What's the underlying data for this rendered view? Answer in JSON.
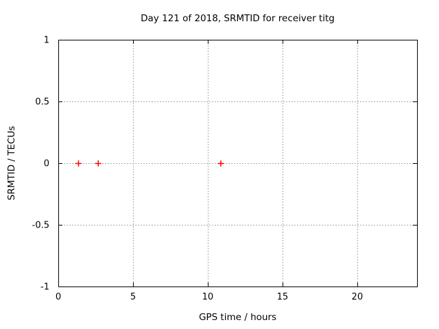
{
  "chart_data": {
    "type": "scatter",
    "title": "Day 121 of 2018, SRMTID for receiver titg",
    "xlabel": "GPS time / hours",
    "ylabel": "SRMTID / TECUs",
    "xlim": [
      0,
      24
    ],
    "ylim": [
      -1,
      1
    ],
    "xticks": [
      0,
      5,
      10,
      15,
      20
    ],
    "xtick_labels": [
      "0",
      "5",
      "10",
      "15",
      "20"
    ],
    "yticks": [
      -1,
      -0.5,
      0,
      0.5,
      1
    ],
    "ytick_labels": [
      "-1",
      "-0.5",
      "0",
      "0.5",
      "1"
    ],
    "grid": true,
    "grid_style": "dotted",
    "legend": "none",
    "series": [
      {
        "name": "SRMTID",
        "marker": "plus",
        "color": "#ff0000",
        "points": [
          [
            1.33,
            0
          ],
          [
            2.65,
            0
          ],
          [
            10.85,
            0
          ]
        ]
      }
    ],
    "colors": {
      "background": "#ffffff",
      "border": "#000000",
      "grid": "#a8a8a8",
      "text": "#000000"
    }
  }
}
